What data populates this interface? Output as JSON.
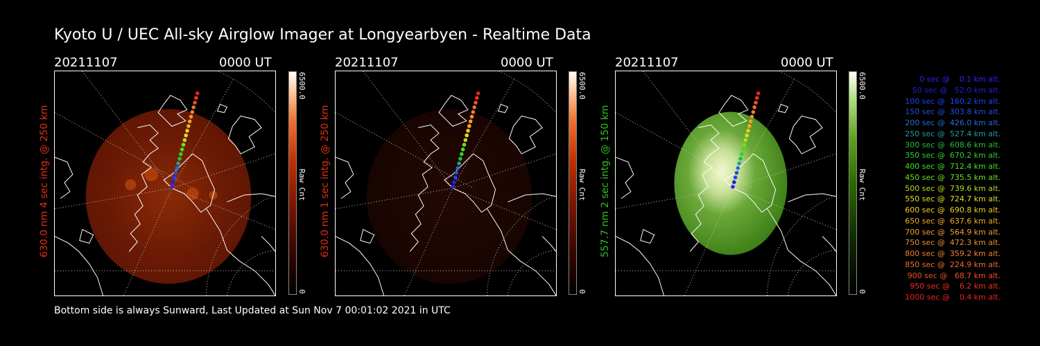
{
  "title": "Kyoto U / UEC All-sky Airglow Imager at Longyearbyen - Realtime Data",
  "footer": "Bottom side is always Sunward, Last Updated at Sun Nov  7 00:01:02 2021 in UTC",
  "panels": [
    {
      "date": "20211107",
      "ut": "0000 UT",
      "label": "630.0 nm 4 sec intg. @ 250 km",
      "label_color": "#e03010",
      "cb_max": "6500.0",
      "cb_min": "0",
      "cb_label": "Raw Cnt",
      "colormap": "red"
    },
    {
      "date": "20211107",
      "ut": "0000 UT",
      "label": "630.0 nm 1 sec intg. @ 250 km",
      "label_color": "#e03010",
      "cb_max": "6500.0",
      "cb_min": "0",
      "cb_label": "Raw Cnt",
      "colormap": "red"
    },
    {
      "date": "20211107",
      "ut": "0000 UT",
      "label": "557.7 nm 2 sec intg. @ 150 km",
      "label_color": "#30c020",
      "cb_max": "6500.0",
      "cb_min": "0",
      "cb_label": "Raw Cnt",
      "colormap": "green"
    }
  ],
  "legend": [
    {
      "text": "   0 sec @    0.1 km alt.",
      "color": "#3020ff"
    },
    {
      "text": "  50 sec @   52.0 km alt.",
      "color": "#2020e0"
    },
    {
      "text": " 100 sec @  160.2 km alt.",
      "color": "#2040ff"
    },
    {
      "text": " 150 sec @  303.8 km alt.",
      "color": "#2050e0"
    },
    {
      "text": " 200 sec @  426.0 km alt.",
      "color": "#2070d0"
    },
    {
      "text": " 250 sec @  527.4 km alt.",
      "color": "#20a0a0"
    },
    {
      "text": " 300 sec @  608.6 km alt.",
      "color": "#20c040"
    },
    {
      "text": " 350 sec @  670.2 km alt.",
      "color": "#30d030"
    },
    {
      "text": " 400 sec @  712.4 km alt.",
      "color": "#40e020"
    },
    {
      "text": " 450 sec @  735.5 km alt.",
      "color": "#70e020"
    },
    {
      "text": " 500 sec @  739.6 km alt.",
      "color": "#b0e020"
    },
    {
      "text": " 550 sec @  724.7 km alt.",
      "color": "#e0e020"
    },
    {
      "text": " 600 sec @  690.8 km alt.",
      "color": "#f0d020"
    },
    {
      "text": " 650 sec @  637.6 km alt.",
      "color": "#f0b020"
    },
    {
      "text": " 700 sec @  564.9 km alt.",
      "color": "#f0a030"
    },
    {
      "text": " 750 sec @  472.3 km alt.",
      "color": "#f09030"
    },
    {
      "text": " 800 sec @  359.2 km alt.",
      "color": "#f08030"
    },
    {
      "text": " 850 sec @  224.9 km alt.",
      "color": "#f07030"
    },
    {
      "text": " 900 sec @   68.7 km alt.",
      "color": "#f05020"
    },
    {
      "text": " 950 sec @    6.2 km alt.",
      "color": "#f03020"
    },
    {
      "text": "1000 sec @    0.4 km alt.",
      "color": "#f02020"
    }
  ]
}
